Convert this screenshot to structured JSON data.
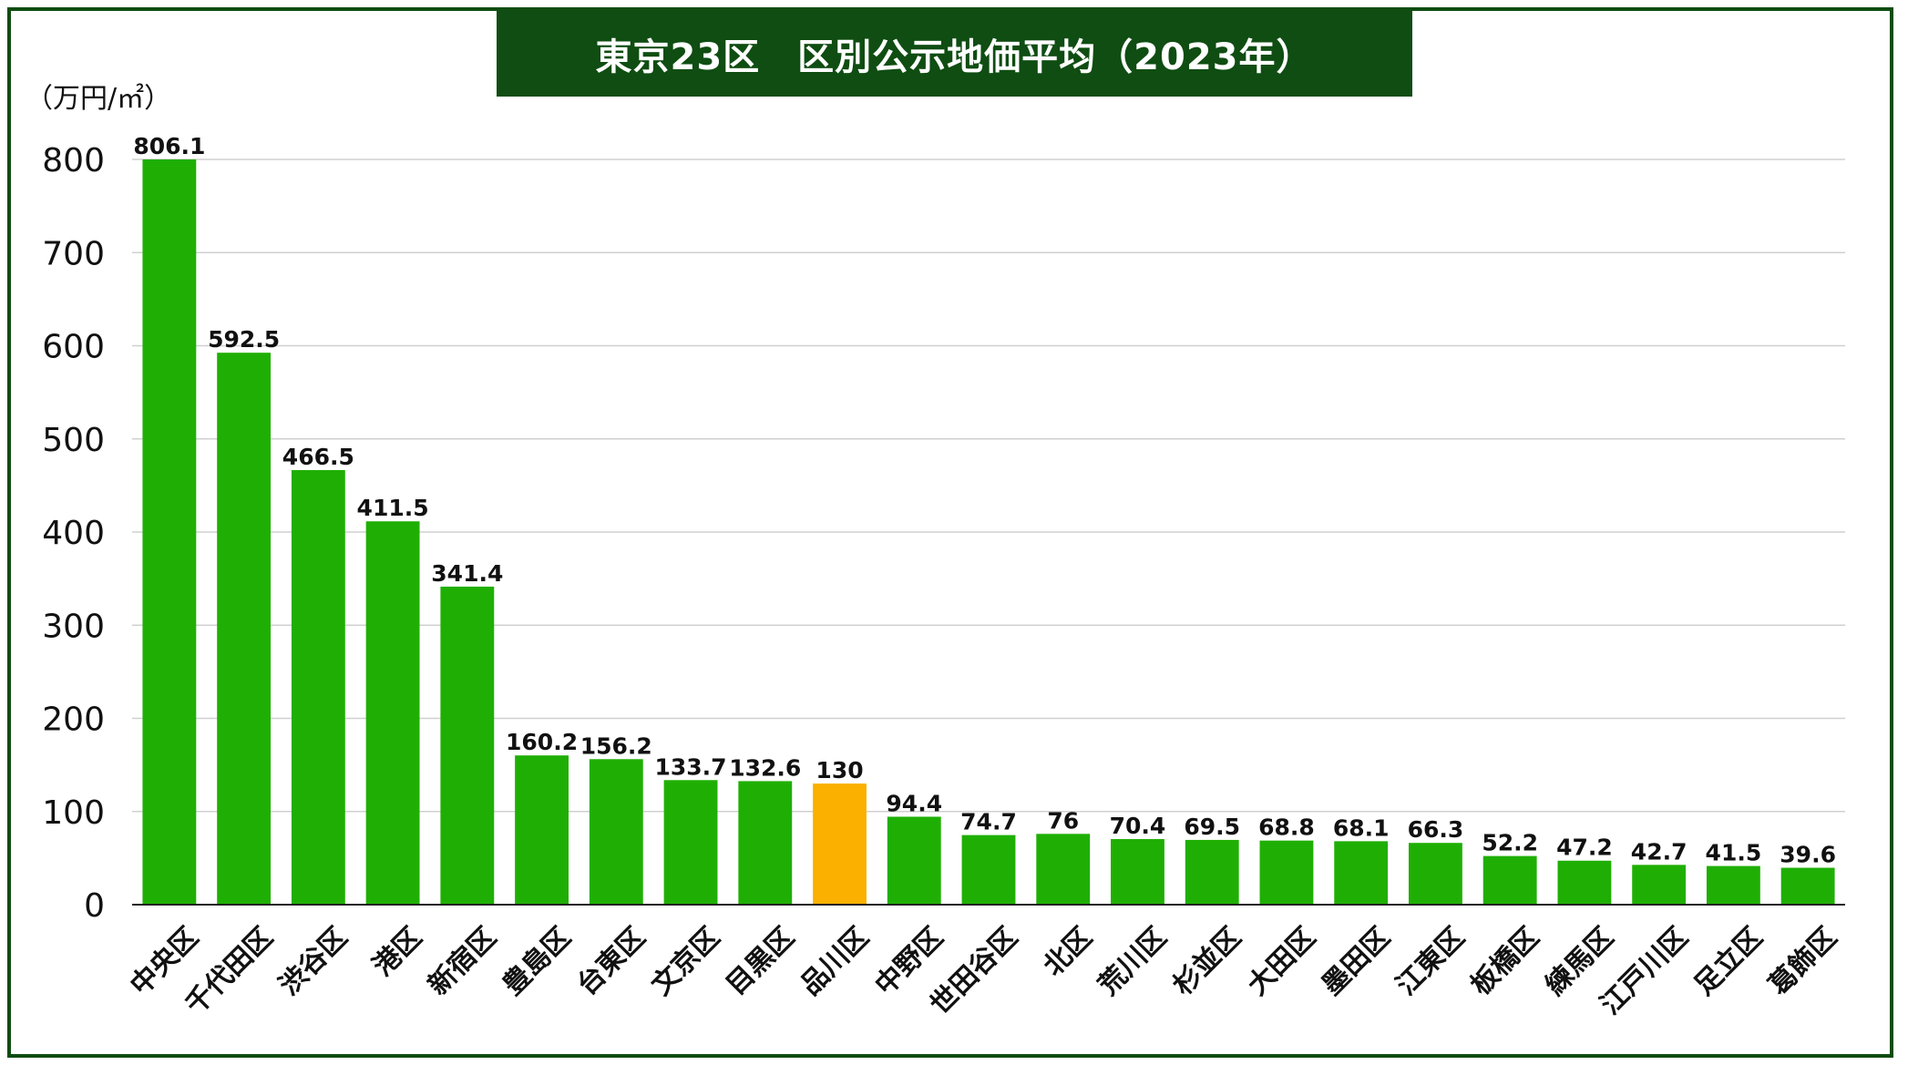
{
  "chart_data": {
    "type": "bar",
    "title": "東京23区　区別公示地価平均（2023年）",
    "ylabel": "（万円/㎡）",
    "ylim": [
      0,
      800
    ],
    "yticks": [
      0,
      100,
      200,
      300,
      400,
      500,
      600,
      700,
      800
    ],
    "grid": true,
    "categories": [
      "中央区",
      "千代田区",
      "渋谷区",
      "港区",
      "新宿区",
      "豊島区",
      "台東区",
      "文京区",
      "目黒区",
      "品川区",
      "中野区",
      "世田谷区",
      "北区",
      "荒川区",
      "杉並区",
      "大田区",
      "墨田区",
      "江東区",
      "板橋区",
      "練馬区",
      "江戸川区",
      "足立区",
      "葛飾区"
    ],
    "values": [
      806.1,
      592.5,
      466.5,
      411.5,
      341.4,
      160.2,
      156.2,
      133.7,
      132.6,
      130,
      94.4,
      74.7,
      76,
      70.4,
      69.5,
      68.8,
      68.1,
      66.3,
      52.2,
      47.2,
      42.7,
      41.5,
      39.6
    ],
    "value_labels": [
      "806.1",
      "592.5",
      "466.5",
      "411.5",
      "341.4",
      "160.2",
      "156.2",
      "133.7",
      "132.6",
      "130",
      "94.4",
      "74.7",
      "76",
      "70.4",
      "69.5",
      "68.8",
      "68.1",
      "66.3",
      "52.2",
      "47.2",
      "42.7",
      "41.5",
      "39.6"
    ],
    "highlight_category": "品川区"
  },
  "colors": {
    "bar": "#1faf04",
    "highlight": "#fbb000",
    "frame": "#0f4d12",
    "grid": "#d0d0d0",
    "axis": "#222222"
  }
}
